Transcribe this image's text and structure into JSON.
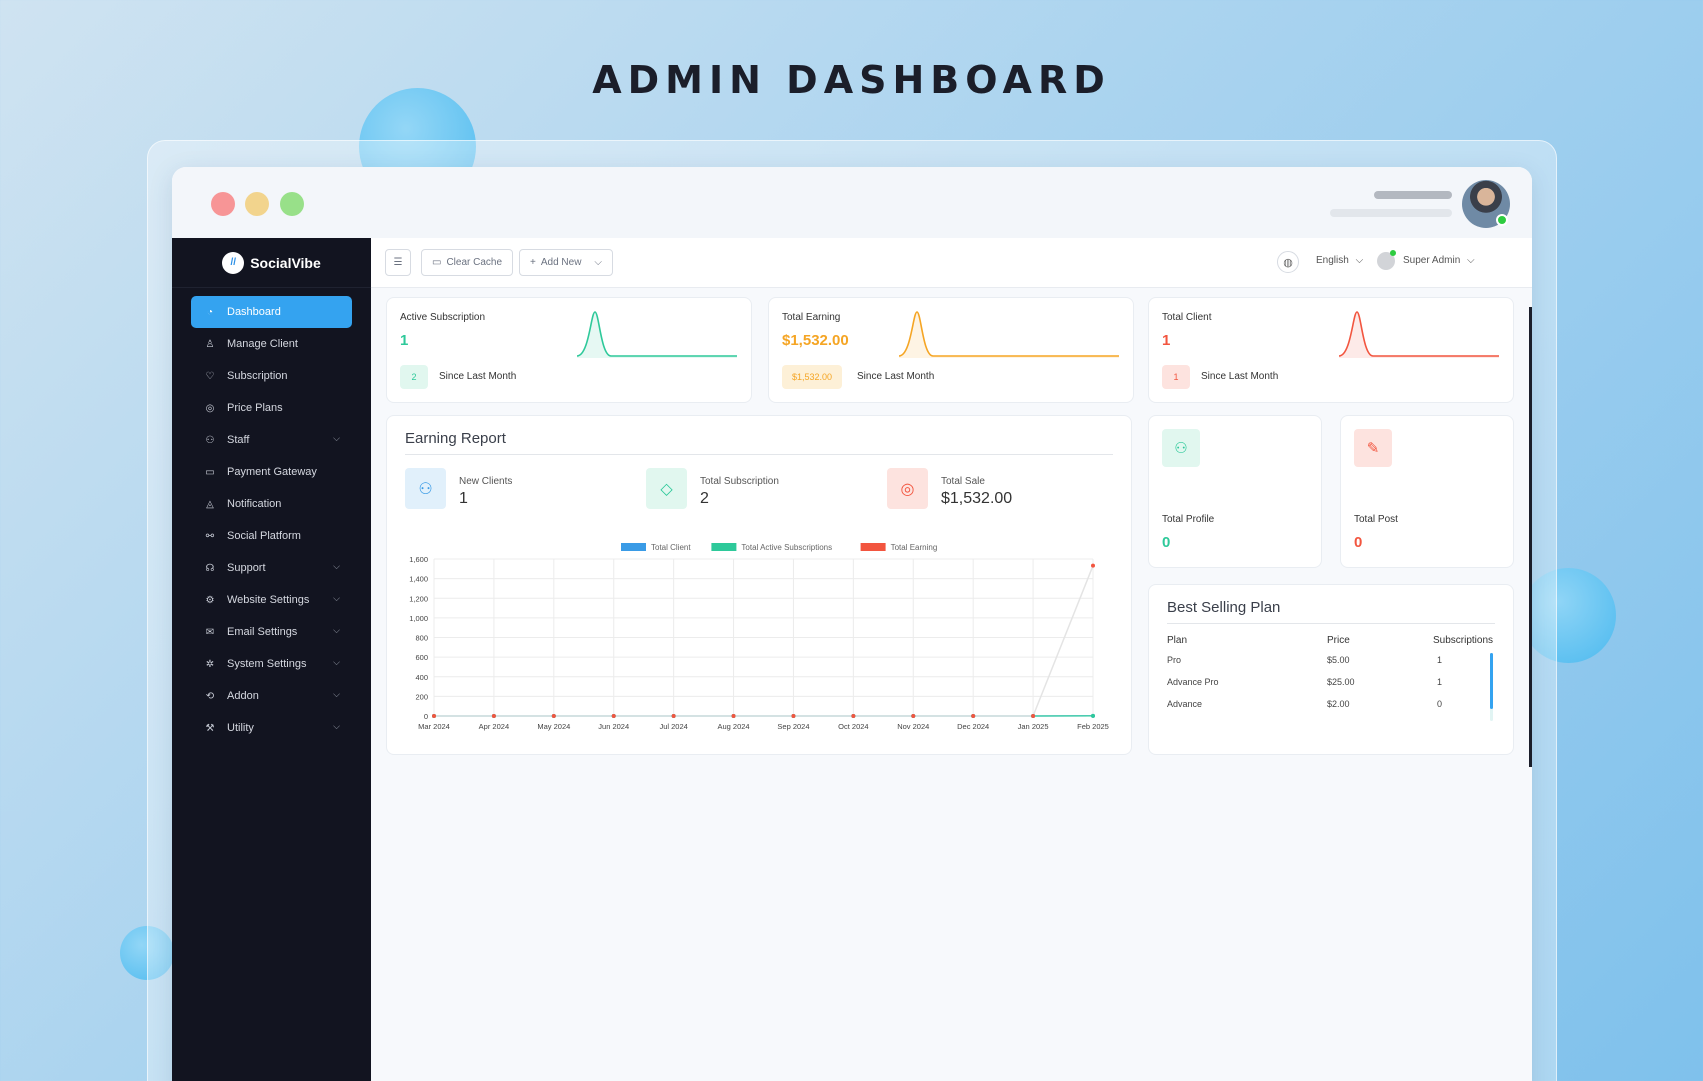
{
  "hero": {
    "title": "ADMIN DASHBOARD"
  },
  "sidebar": {
    "brand": "SocialVibe",
    "items": [
      {
        "label": "Dashboard",
        "icon": "gauge-icon",
        "active": true,
        "chevron": false
      },
      {
        "label": "Manage Client",
        "icon": "user-icon",
        "chevron": false
      },
      {
        "label": "Subscription",
        "icon": "handshake-icon",
        "chevron": false
      },
      {
        "label": "Price Plans",
        "icon": "coins-icon",
        "chevron": false
      },
      {
        "label": "Staff",
        "icon": "users-icon",
        "chevron": true
      },
      {
        "label": "Payment Gateway",
        "icon": "card-icon",
        "chevron": false
      },
      {
        "label": "Notification",
        "icon": "bell-icon",
        "chevron": false
      },
      {
        "label": "Social Platform",
        "icon": "social-icon",
        "chevron": false
      },
      {
        "label": "Support",
        "icon": "headset-icon",
        "chevron": true
      },
      {
        "label": "Website Settings",
        "icon": "gear-icon",
        "chevron": true
      },
      {
        "label": "Email Settings",
        "icon": "mail-icon",
        "chevron": true
      },
      {
        "label": "System Settings",
        "icon": "cog-icon",
        "chevron": true
      },
      {
        "label": "Addon",
        "icon": "puzzle-icon",
        "chevron": true
      },
      {
        "label": "Utility",
        "icon": "tools-icon",
        "chevron": true
      }
    ]
  },
  "topbar": {
    "clear_cache": "Clear Cache",
    "add_new": "Add New",
    "language": "English",
    "user": "Super Admin"
  },
  "stats": [
    {
      "label": "Active Subscription",
      "value": "1",
      "badge": "2",
      "since": "Since Last Month",
      "color": "#2ec99a",
      "badge_bg": "#e1f7ef"
    },
    {
      "label": "Total Earning",
      "value": "$1,532.00",
      "badge": "$1,532.00",
      "since": "Since Last Month",
      "color": "#f5a524",
      "badge_bg": "#fdf0d7"
    },
    {
      "label": "Total Client",
      "value": "1",
      "badge": "1",
      "since": "Since Last Month",
      "color": "#f2553f",
      "badge_bg": "#fde3df"
    }
  ],
  "earning_report": {
    "title": "Earning Report",
    "kpis": [
      {
        "label": "New Clients",
        "value": "1",
        "icon": "users-icon",
        "color": "#3a9be6",
        "bg": "#e1f0fb"
      },
      {
        "label": "Total Subscription",
        "value": "2",
        "icon": "tag-icon",
        "color": "#2ec99a",
        "bg": "#e1f7ef"
      },
      {
        "label": "Total Sale",
        "value": "$1,532.00",
        "icon": "coins-icon",
        "color": "#f2553f",
        "bg": "#fde3df"
      }
    ]
  },
  "mini_cards": [
    {
      "label": "Total Profile",
      "value": "0",
      "icon": "users-icon",
      "color": "#2ec99a",
      "bg": "#e1f7ef"
    },
    {
      "label": "Total Post",
      "value": "0",
      "icon": "edit-icon",
      "color": "#f2553f",
      "bg": "#fde3df"
    }
  ],
  "best_selling": {
    "title": "Best Selling Plan",
    "headers": [
      "Plan",
      "Price",
      "Subscriptions"
    ],
    "rows": [
      [
        "Pro",
        "$5.00",
        "1"
      ],
      [
        "Advance Pro",
        "$25.00",
        "1"
      ],
      [
        "Advance",
        "$2.00",
        "0"
      ]
    ]
  },
  "chart_data": {
    "type": "line",
    "categories": [
      "Mar 2024",
      "Apr 2024",
      "May 2024",
      "Jun 2024",
      "Jul 2024",
      "Aug 2024",
      "Sep 2024",
      "Oct 2024",
      "Nov 2024",
      "Dec 2024",
      "Jan 2025",
      "Feb 2025"
    ],
    "series": [
      {
        "name": "Total Client",
        "color": "#3a9be6",
        "values": [
          0,
          0,
          0,
          0,
          0,
          0,
          0,
          0,
          0,
          0,
          0,
          1
        ]
      },
      {
        "name": "Total Active Subscriptions",
        "color": "#2ec99a",
        "values": [
          0,
          0,
          0,
          0,
          0,
          0,
          0,
          0,
          0,
          0,
          0,
          1
        ]
      },
      {
        "name": "Total Earning",
        "color": "#f2553f",
        "values": [
          0,
          0,
          0,
          0,
          0,
          0,
          0,
          0,
          0,
          0,
          0,
          1532
        ]
      }
    ],
    "yticks": [
      "0",
      "200",
      "400",
      "600",
      "800",
      "1,000",
      "1,200",
      "1,400",
      "1,600"
    ],
    "ylim": [
      0,
      1600
    ],
    "legend": "top",
    "grid": true
  }
}
